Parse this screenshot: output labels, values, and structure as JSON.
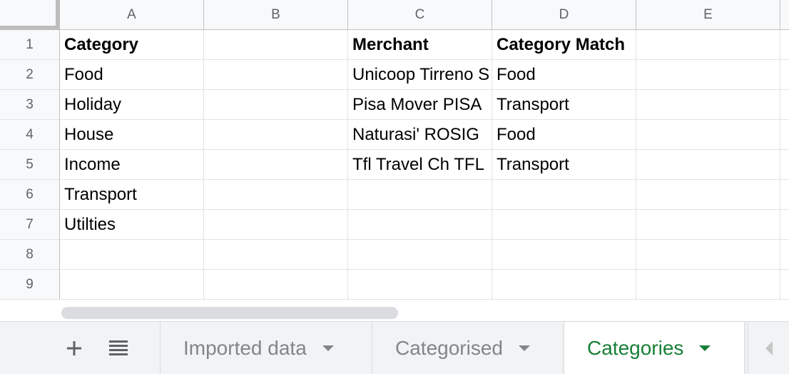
{
  "columns": [
    "A",
    "B",
    "C",
    "D",
    "E"
  ],
  "rows": [
    "1",
    "2",
    "3",
    "4",
    "5",
    "6",
    "7",
    "8",
    "9"
  ],
  "cells": {
    "A1": "Category",
    "A2": "Food",
    "A3": "Holiday",
    "A4": "House",
    "A5": "Income",
    "A6": "Transport",
    "A7": "Utilties",
    "C1": "Merchant",
    "C2": "Unicoop Tirreno S",
    "C3": "Pisa Mover PISA",
    "C4": "Naturasi' ROSIG",
    "C5": "Tfl Travel Ch TFL",
    "D1": "Category Match",
    "D2": "Food",
    "D3": "Transport",
    "D4": "Food",
    "D5": "Transport"
  },
  "toolbar": {
    "add_sheet_icon": "plus-icon",
    "all_sheets_icon": "list-icon"
  },
  "sheets": [
    {
      "label": "Imported data",
      "active": false
    },
    {
      "label": "Categorised",
      "active": false
    },
    {
      "label": "Categories",
      "active": true
    }
  ],
  "colors": {
    "active_tab": "#188038",
    "inactive_tab": "#80868b",
    "header_bg": "#f8f9fa",
    "grid": "#e2e3e3"
  }
}
